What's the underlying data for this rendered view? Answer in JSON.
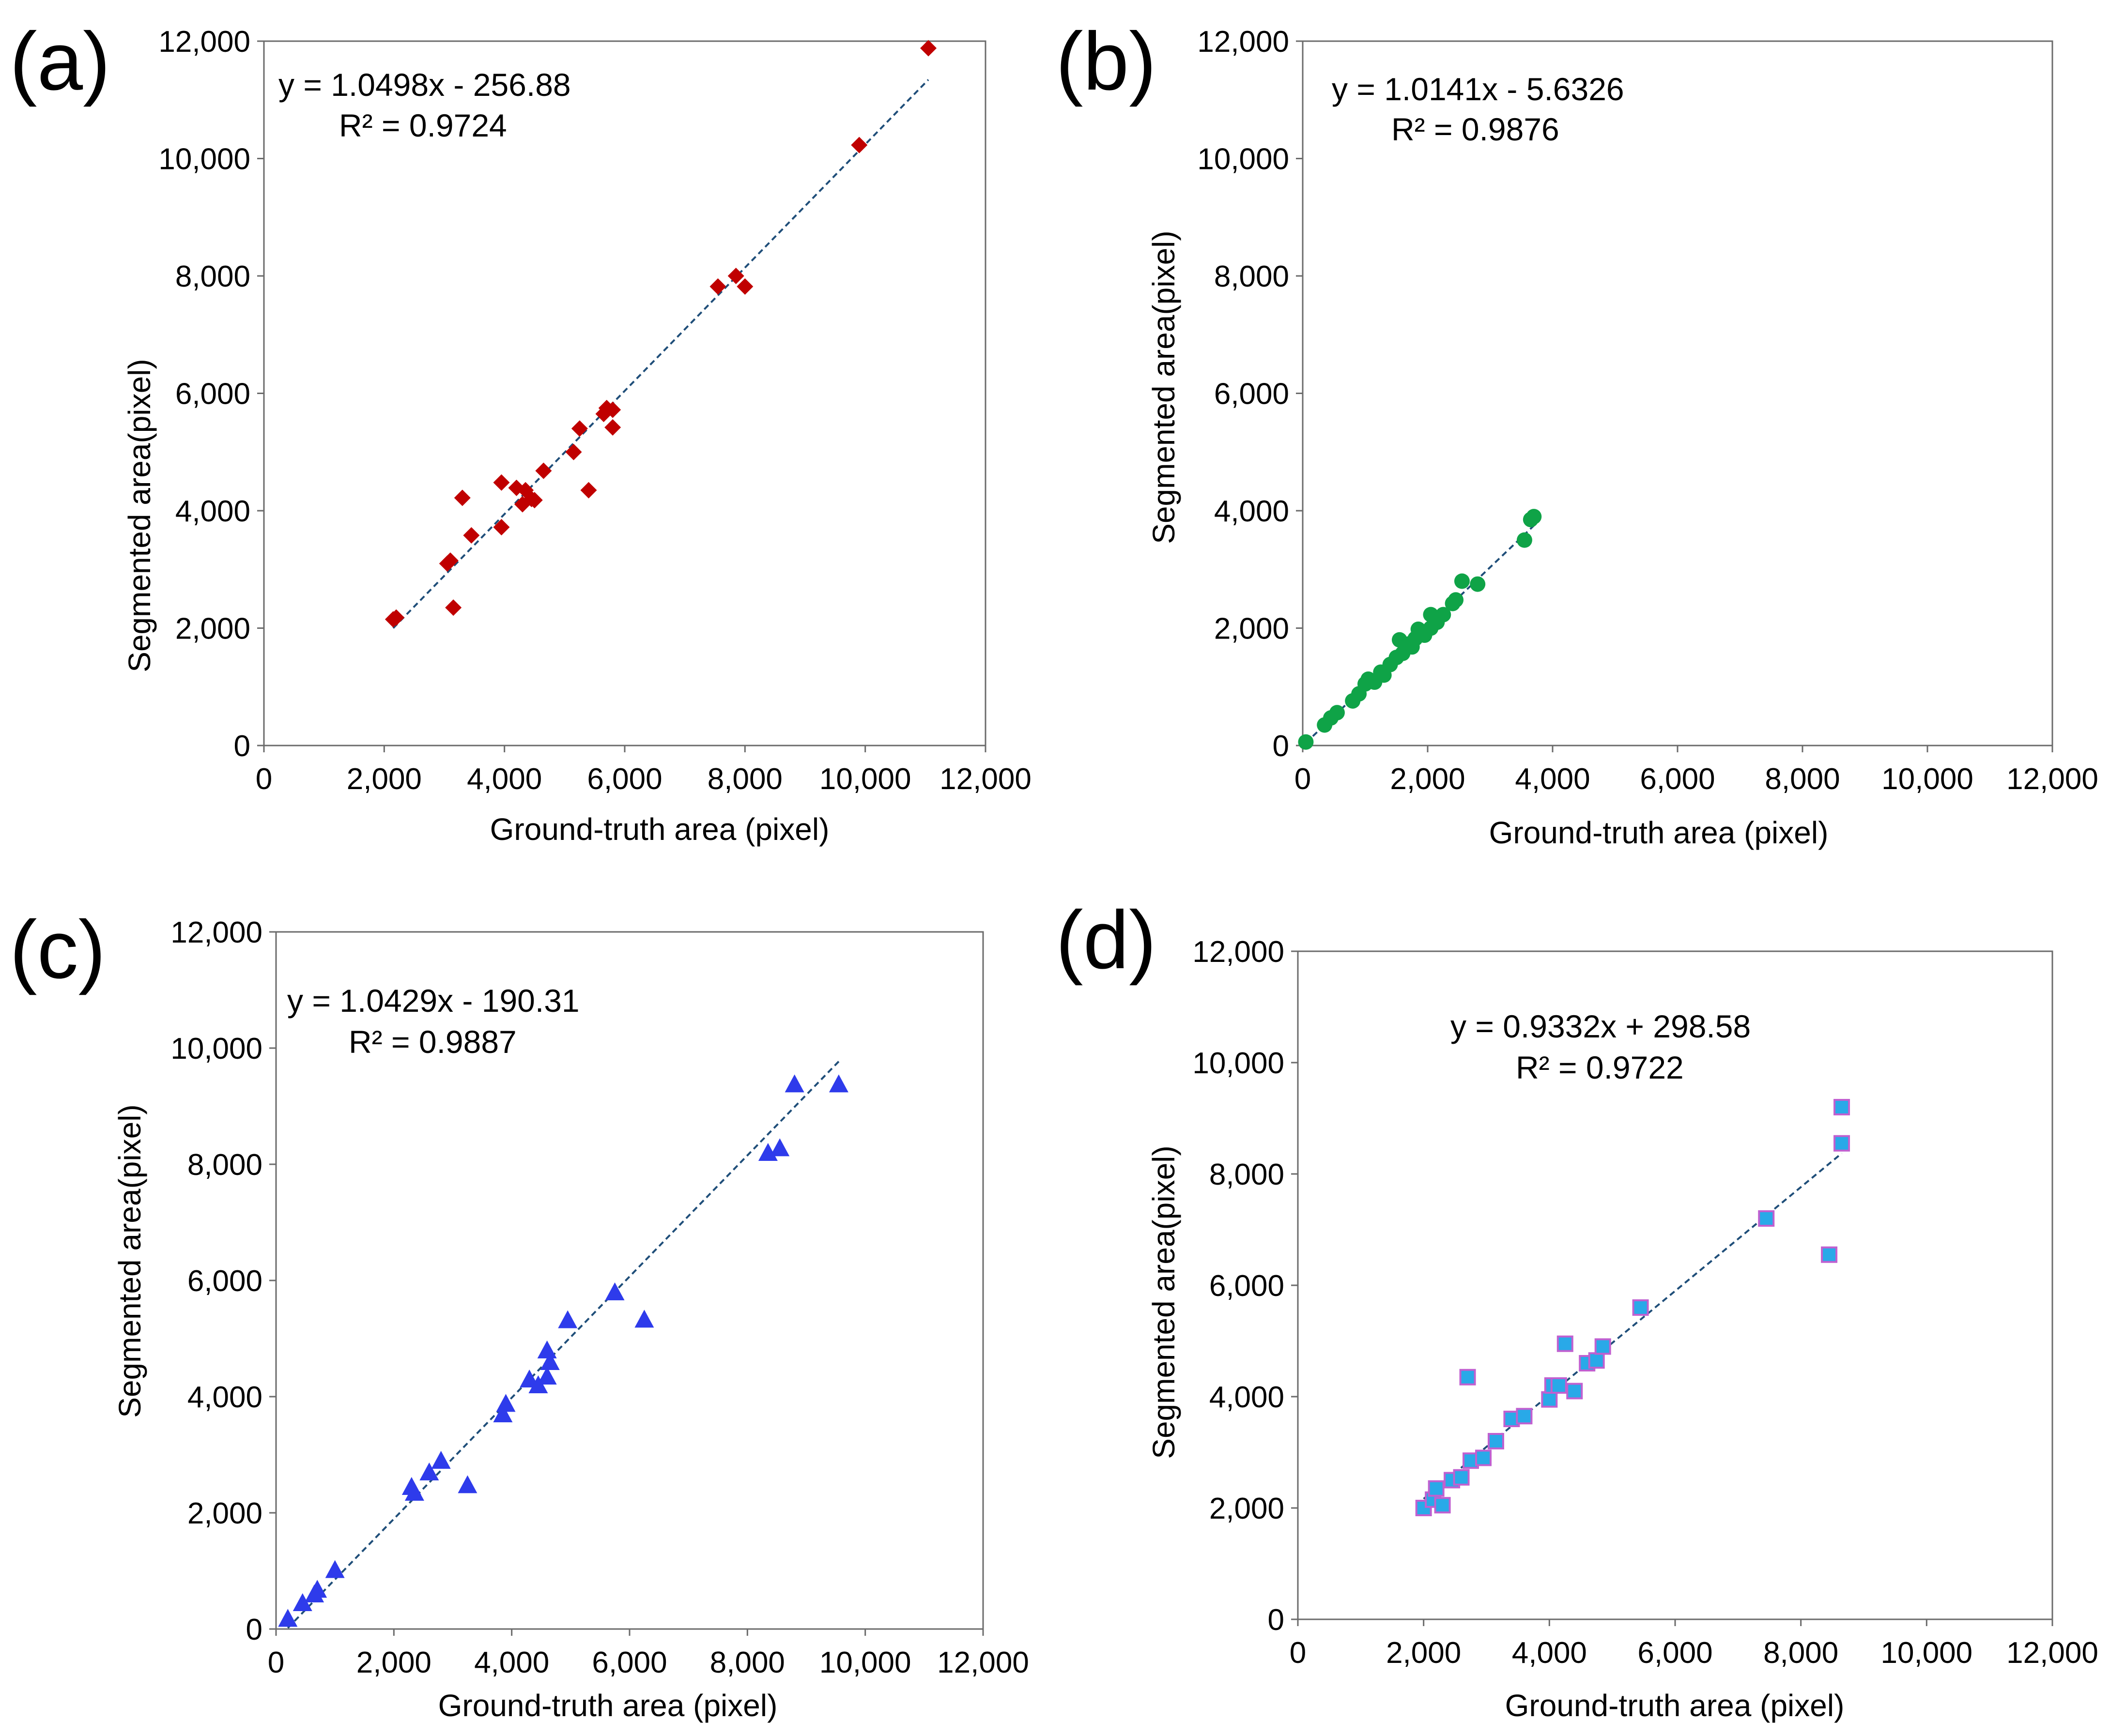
{
  "chart_data": [
    {
      "type": "scatter",
      "panel_label": "(a)",
      "xlabel": "Ground-truth area (pixel)",
      "ylabel": "Segmented area(pixel)",
      "xlim": [
        0,
        12000
      ],
      "ylim": [
        0,
        12000
      ],
      "x_ticks": [
        "0",
        "2,000",
        "4,000",
        "6,000",
        "8,000",
        "10,000",
        "12,000"
      ],
      "y_ticks": [
        "0",
        "2,000",
        "4,000",
        "6,000",
        "8,000",
        "10,000",
        "12,000"
      ],
      "grid": false,
      "marker": "diamond",
      "color": "#C00000",
      "equation": "y = 1.0498x - 256.88",
      "r_squared": "R² = 0.9724",
      "trendline": {
        "slope": 1.0498,
        "intercept": -256.88,
        "x_range": [
          2150,
          11050
        ],
        "color": "#1F4E79"
      },
      "series": [
        {
          "name": "(a)",
          "points": [
            [
              2150,
              2150
            ],
            [
              2200,
              2180
            ],
            [
              3050,
              3100
            ],
            [
              3100,
              3150
            ],
            [
              3150,
              2350
            ],
            [
              3300,
              4220
            ],
            [
              3450,
              3580
            ],
            [
              3950,
              3720
            ],
            [
              3950,
              4480
            ],
            [
              4200,
              4390
            ],
            [
              4300,
              4110
            ],
            [
              4350,
              4350
            ],
            [
              4450,
              4200
            ],
            [
              4500,
              4180
            ],
            [
              4650,
              4680
            ],
            [
              5150,
              5000
            ],
            [
              5250,
              5400
            ],
            [
              5400,
              4350
            ],
            [
              5650,
              5650
            ],
            [
              5700,
              5750
            ],
            [
              5800,
              5720
            ],
            [
              5800,
              5420
            ],
            [
              7550,
              7820
            ],
            [
              7850,
              8000
            ],
            [
              8000,
              7820
            ],
            [
              9900,
              10230
            ],
            [
              11050,
              11880
            ]
          ]
        }
      ]
    },
    {
      "type": "scatter",
      "panel_label": "(b)",
      "xlabel": "Ground-truth area (pixel)",
      "ylabel": "Segmented area(pixel)",
      "xlim": [
        0,
        12000
      ],
      "ylim": [
        0,
        12000
      ],
      "x_ticks": [
        "0",
        "2,000",
        "4,000",
        "6,000",
        "8,000",
        "10,000",
        "12,000"
      ],
      "y_ticks": [
        "0",
        "2,000",
        "4,000",
        "6,000",
        "8,000",
        "10,000",
        "12,000"
      ],
      "grid": false,
      "marker": "circle",
      "color": "#0FA347",
      "equation": "y = 1.0141x - 5.6326",
      "r_squared": "R² = 0.9876",
      "trendline": {
        "slope": 1.0141,
        "intercept": -5.6326,
        "x_range": [
          50,
          3700
        ],
        "color": "#1F4E79"
      },
      "series": [
        {
          "name": "(b)",
          "points": [
            [
              50,
              60
            ],
            [
              350,
              350
            ],
            [
              450,
              470
            ],
            [
              550,
              560
            ],
            [
              800,
              760
            ],
            [
              900,
              880
            ],
            [
              1000,
              1050
            ],
            [
              1050,
              1130
            ],
            [
              1150,
              1080
            ],
            [
              1250,
              1250
            ],
            [
              1300,
              1200
            ],
            [
              1400,
              1380
            ],
            [
              1500,
              1500
            ],
            [
              1550,
              1800
            ],
            [
              1600,
              1570
            ],
            [
              1700,
              1730
            ],
            [
              1750,
              1680
            ],
            [
              1800,
              1820
            ],
            [
              1850,
              1980
            ],
            [
              1950,
              1880
            ],
            [
              2050,
              2000
            ],
            [
              2050,
              2230
            ],
            [
              2150,
              2100
            ],
            [
              2250,
              2230
            ],
            [
              2400,
              2420
            ],
            [
              2450,
              2480
            ],
            [
              2550,
              2800
            ],
            [
              2800,
              2750
            ],
            [
              3550,
              3500
            ],
            [
              3650,
              3850
            ],
            [
              3700,
              3900
            ]
          ]
        }
      ]
    },
    {
      "type": "scatter",
      "panel_label": "(c)",
      "xlabel": "Ground-truth area (pixel)",
      "ylabel": "Segmented area(pixel)",
      "xlim": [
        0,
        12000
      ],
      "ylim": [
        0,
        12000
      ],
      "x_ticks": [
        "0",
        "2,000",
        "4,000",
        "6,000",
        "8,000",
        "10,000",
        "12,000"
      ],
      "y_ticks": [
        "0",
        "2,000",
        "4,000",
        "6,000",
        "8,000",
        "10,000",
        "12,000"
      ],
      "grid": false,
      "marker": "triangle",
      "color": "#2E3BEB",
      "equation": "y = 1.0429x - 190.31",
      "r_squared": "R² = 0.9887",
      "trendline": {
        "slope": 1.0429,
        "intercept": -190.31,
        "x_range": [
          200,
          9550
        ],
        "color": "#1F4E79"
      },
      "series": [
        {
          "name": "(c)",
          "points": [
            [
              200,
              180
            ],
            [
              450,
              450
            ],
            [
              650,
              600
            ],
            [
              700,
              680
            ],
            [
              1000,
              1020
            ],
            [
              2300,
              2450
            ],
            [
              2350,
              2350
            ],
            [
              2600,
              2700
            ],
            [
              2800,
              2900
            ],
            [
              3250,
              2480
            ],
            [
              3850,
              3700
            ],
            [
              3900,
              3880
            ],
            [
              4300,
              4300
            ],
            [
              4450,
              4200
            ],
            [
              4600,
              4350
            ],
            [
              4600,
              4800
            ],
            [
              4650,
              4600
            ],
            [
              4950,
              5320
            ],
            [
              5750,
              5800
            ],
            [
              6250,
              5330
            ],
            [
              8350,
              8200
            ],
            [
              8550,
              8280
            ],
            [
              8800,
              9380
            ],
            [
              9550,
              9380
            ]
          ]
        }
      ]
    },
    {
      "type": "scatter",
      "panel_label": "(d)",
      "xlabel": "Ground-truth area (pixel)",
      "ylabel": "Segmented area(pixel)",
      "xlim": [
        0,
        12000
      ],
      "ylim": [
        0,
        12000
      ],
      "x_ticks": [
        "0",
        "2,000",
        "4,000",
        "6,000",
        "8,000",
        "10,000",
        "12,000"
      ],
      "y_ticks": [
        "0",
        "2,000",
        "4,000",
        "6,000",
        "8,000",
        "10,000",
        "12,000"
      ],
      "grid": false,
      "marker": "square",
      "color": "#29A9E8",
      "edge_color": "#C060D0",
      "equation": "y = 0.9332x + 298.58",
      "r_squared": "R² = 0.9722",
      "trendline": {
        "slope": 0.9332,
        "intercept": 298.58,
        "x_range": [
          2000,
          8650
        ],
        "color": "#1F4E79"
      },
      "series": [
        {
          "name": "(d)",
          "points": [
            [
              2000,
              2000
            ],
            [
              2150,
              2150
            ],
            [
              2200,
              2350
            ],
            [
              2300,
              2050
            ],
            [
              2450,
              2500
            ],
            [
              2600,
              2550
            ],
            [
              2750,
              2850
            ],
            [
              2700,
              4350
            ],
            [
              2950,
              2900
            ],
            [
              3150,
              3200
            ],
            [
              3400,
              3600
            ],
            [
              3600,
              3650
            ],
            [
              4000,
              3950
            ],
            [
              4050,
              4200
            ],
            [
              4150,
              4200
            ],
            [
              4250,
              4950
            ],
            [
              4400,
              4100
            ],
            [
              4600,
              4600
            ],
            [
              4750,
              4650
            ],
            [
              4850,
              4900
            ],
            [
              5450,
              5600
            ],
            [
              7450,
              7200
            ],
            [
              8450,
              6550
            ],
            [
              8650,
              8550
            ],
            [
              8650,
              9200
            ]
          ]
        }
      ]
    }
  ]
}
